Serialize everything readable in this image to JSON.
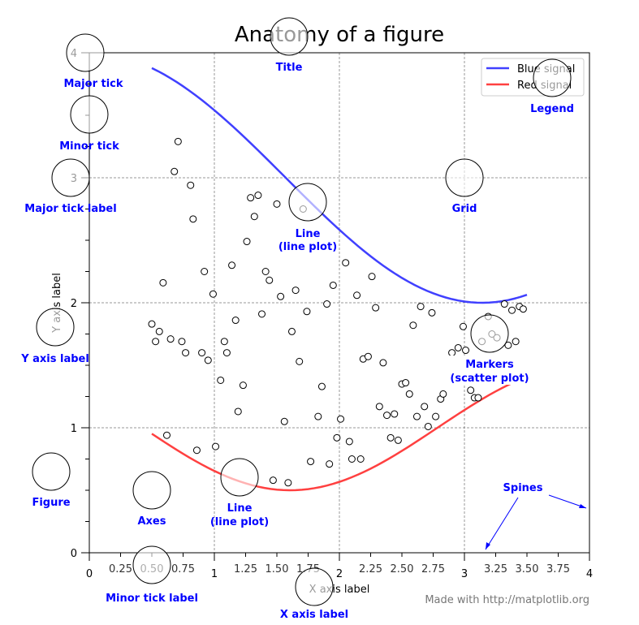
{
  "chart_data": {
    "type": "line",
    "title": "Anatomy of a figure",
    "xlabel": "X axis label",
    "ylabel": "Y axis label",
    "xlim": [
      0,
      4
    ],
    "ylim": [
      0,
      4
    ],
    "grid": true,
    "legend_position": "top-right",
    "x_major_ticks": [
      "0",
      "1",
      "2",
      "3",
      "4"
    ],
    "x_minor_ticks": [
      "0.25",
      "0.50",
      "0.75",
      "1.25",
      "1.50",
      "1.75",
      "2.25",
      "2.50",
      "2.75",
      "3.25",
      "3.50",
      "3.75"
    ],
    "y_major_ticks": [
      "0",
      "1",
      "2",
      "3",
      "4"
    ],
    "series": [
      {
        "name": "Blue signal",
        "color": "#4040ff",
        "x": [
          0.5,
          0.75,
          1.0,
          1.25,
          1.5,
          1.75,
          2.0,
          2.25,
          2.5,
          2.75,
          3.0,
          3.25,
          3.5
        ],
        "y": [
          3.878,
          3.732,
          3.54,
          3.315,
          3.071,
          2.822,
          2.584,
          2.372,
          2.199,
          2.076,
          2.01,
          2.006,
          2.064
        ]
      },
      {
        "name": "Red signal",
        "color": "#ff4040",
        "x": [
          0.5,
          0.75,
          1.0,
          1.25,
          1.5,
          1.75,
          2.0,
          2.25,
          2.5,
          2.75,
          3.0,
          3.25,
          3.5
        ],
        "y": [
          0.952,
          0.792,
          0.655,
          0.555,
          0.505,
          0.51,
          0.568,
          0.673,
          0.815,
          0.977,
          1.142,
          1.292,
          1.407
        ]
      }
    ],
    "scatter": [
      [
        0.71,
        3.29
      ],
      [
        0.68,
        3.05
      ],
      [
        0.81,
        2.94
      ],
      [
        0.83,
        2.67
      ],
      [
        0.59,
        2.16
      ],
      [
        0.5,
        1.83
      ],
      [
        0.56,
        1.77
      ],
      [
        0.53,
        1.69
      ],
      [
        0.65,
        1.71
      ],
      [
        0.74,
        1.69
      ],
      [
        0.77,
        1.6
      ],
      [
        0.9,
        1.6
      ],
      [
        0.95,
        1.54
      ],
      [
        0.92,
        2.25
      ],
      [
        0.99,
        2.07
      ],
      [
        1.05,
        1.38
      ],
      [
        1.08,
        1.69
      ],
      [
        1.1,
        1.6
      ],
      [
        1.14,
        2.3
      ],
      [
        1.17,
        1.86
      ],
      [
        1.19,
        1.13
      ],
      [
        1.23,
        1.34
      ],
      [
        1.26,
        2.49
      ],
      [
        1.29,
        2.84
      ],
      [
        1.32,
        2.69
      ],
      [
        1.35,
        2.86
      ],
      [
        1.38,
        1.91
      ],
      [
        1.41,
        2.25
      ],
      [
        1.44,
        2.18
      ],
      [
        1.5,
        2.79
      ],
      [
        1.53,
        2.05
      ],
      [
        1.56,
        1.05
      ],
      [
        1.59,
        0.56
      ],
      [
        1.47,
        0.58
      ],
      [
        1.62,
        1.77
      ],
      [
        1.65,
        2.1
      ],
      [
        1.68,
        1.53
      ],
      [
        1.71,
        2.75
      ],
      [
        1.74,
        1.93
      ],
      [
        1.77,
        0.73
      ],
      [
        1.83,
        1.09
      ],
      [
        1.86,
        1.33
      ],
      [
        1.9,
        1.99
      ],
      [
        1.92,
        0.71
      ],
      [
        1.95,
        2.14
      ],
      [
        1.98,
        0.92
      ],
      [
        2.01,
        1.07
      ],
      [
        2.05,
        2.32
      ],
      [
        2.08,
        0.89
      ],
      [
        2.1,
        0.75
      ],
      [
        2.14,
        2.06
      ],
      [
        2.17,
        0.75
      ],
      [
        2.19,
        1.55
      ],
      [
        2.23,
        1.57
      ],
      [
        2.26,
        2.21
      ],
      [
        2.29,
        1.96
      ],
      [
        2.32,
        1.17
      ],
      [
        2.35,
        1.52
      ],
      [
        2.38,
        1.1
      ],
      [
        2.41,
        0.92
      ],
      [
        2.44,
        1.11
      ],
      [
        2.47,
        0.9
      ],
      [
        2.5,
        1.35
      ],
      [
        2.53,
        1.36
      ],
      [
        2.56,
        1.27
      ],
      [
        2.59,
        1.82
      ],
      [
        2.62,
        1.09
      ],
      [
        2.65,
        1.97
      ],
      [
        2.68,
        1.17
      ],
      [
        2.71,
        1.01
      ],
      [
        2.74,
        1.92
      ],
      [
        2.77,
        1.09
      ],
      [
        2.81,
        1.23
      ],
      [
        2.83,
        1.27
      ],
      [
        2.9,
        1.6
      ],
      [
        2.95,
        1.64
      ],
      [
        2.99,
        1.81
      ],
      [
        3.01,
        1.62
      ],
      [
        3.05,
        1.3
      ],
      [
        3.08,
        1.24
      ],
      [
        3.11,
        1.24
      ],
      [
        3.14,
        1.69
      ],
      [
        3.19,
        1.89
      ],
      [
        3.22,
        1.75
      ],
      [
        3.26,
        1.72
      ],
      [
        3.32,
        1.99
      ],
      [
        3.35,
        1.66
      ],
      [
        3.38,
        1.94
      ],
      [
        3.41,
        1.69
      ],
      [
        3.44,
        1.97
      ],
      [
        3.47,
        1.95
      ],
      [
        0.62,
        0.94
      ],
      [
        0.86,
        0.82
      ],
      [
        1.01,
        0.85
      ]
    ]
  },
  "annotations": {
    "major_tick": "Major tick",
    "minor_tick": "Minor tick",
    "major_tick_label": "Major tick label",
    "title": "Title",
    "legend": "Legend",
    "grid": "Grid",
    "line1a": "Line",
    "line1b": "(line plot)",
    "markers_a": "Markers",
    "markers_b": "(scatter plot)",
    "y_axis_label": "Y axis label",
    "figure": "Figure",
    "axes": "Axes",
    "line2a": "Line",
    "line2b": "(line plot)",
    "spines": "Spines",
    "minor_tick_label": "Minor tick label",
    "x_axis_label": "X axis label"
  },
  "footer": "Made with http://matplotlib.org"
}
